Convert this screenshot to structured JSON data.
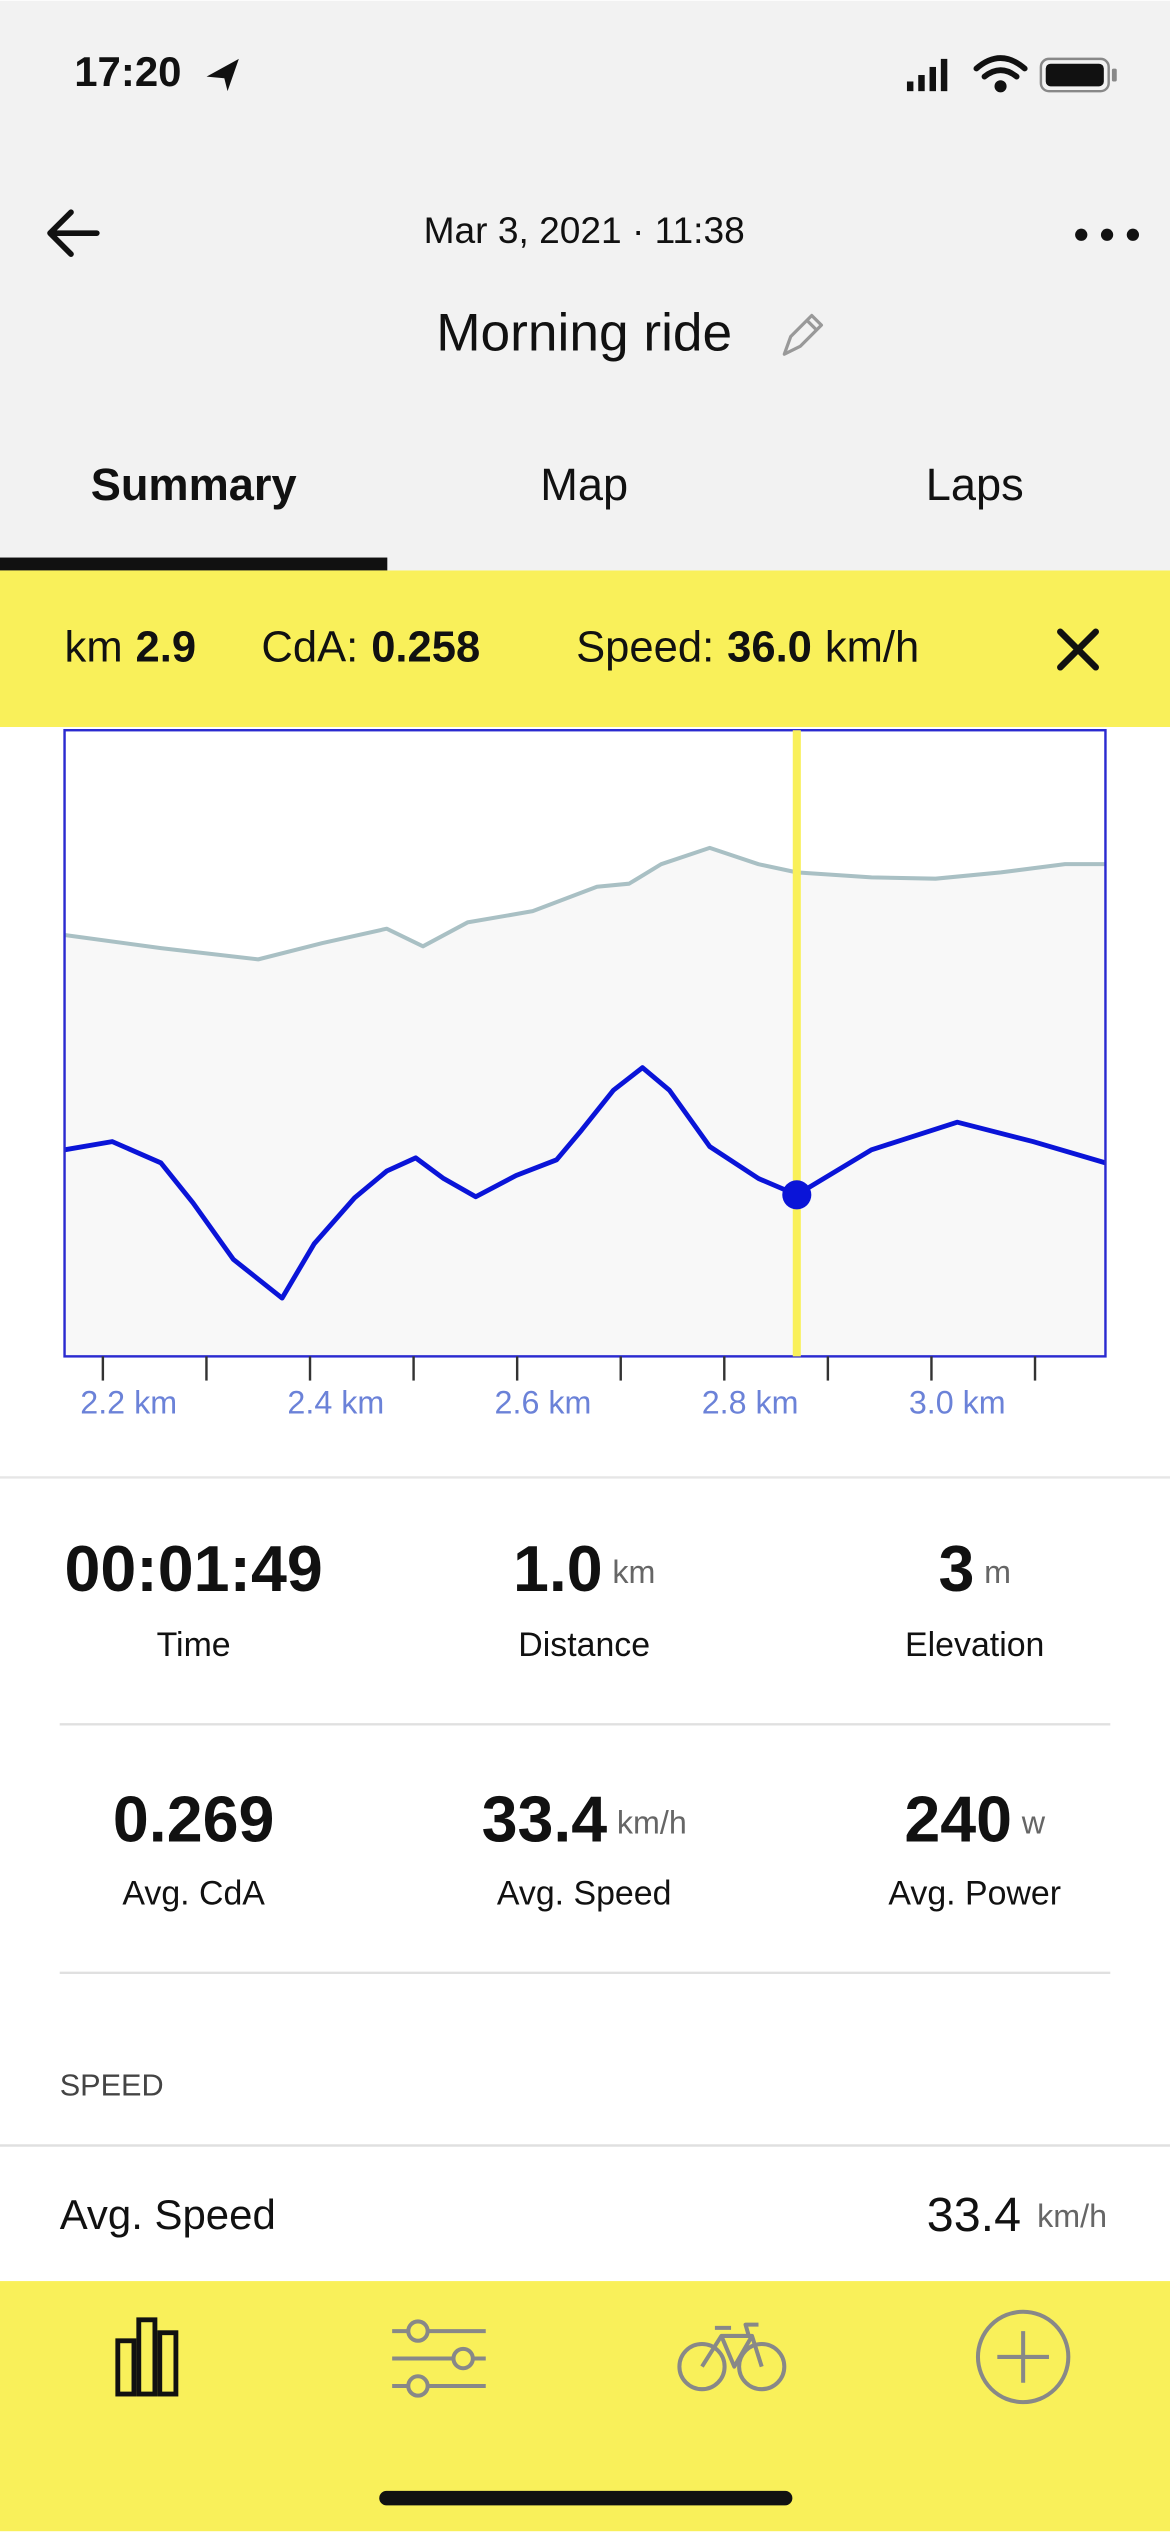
{
  "status": {
    "time": "17:20"
  },
  "header": {
    "date": "Mar 3, 2021 · 11:38",
    "title": "Morning ride"
  },
  "tabs": [
    "Summary",
    "Map",
    "Laps"
  ],
  "selection": {
    "km_label": "km",
    "km": "2.9",
    "cda_label": "CdA:",
    "cda": "0.258",
    "speed_label": "Speed:",
    "speed": "36.0",
    "speed_unit": "km/h"
  },
  "chart_data": {
    "type": "line",
    "xlim": [
      2.163,
      3.168
    ],
    "ylim": [
      0,
      100
    ],
    "xticks": [
      {
        "value": 2.2,
        "label": "2.2 km"
      },
      {
        "value": 2.4,
        "label": "2.4 km"
      },
      {
        "value": 2.6,
        "label": "2.6 km"
      },
      {
        "value": 2.8,
        "label": "2.8 km"
      },
      {
        "value": 3.0,
        "label": "3.0 km"
      }
    ],
    "xminorticks": [
      2.3,
      2.5,
      2.7,
      2.9,
      3.1
    ],
    "series": [
      {
        "color": "#a9c0c4",
        "x": [
          2.163,
          2.256,
          2.35,
          2.412,
          2.474,
          2.509,
          2.552,
          2.615,
          2.677,
          2.708,
          2.739,
          2.786,
          2.833,
          2.87,
          2.942,
          3.004,
          3.067,
          3.129,
          3.168
        ],
        "values": [
          67.3,
          65.2,
          63.4,
          66.0,
          68.3,
          65.5,
          69.3,
          71.1,
          75.0,
          75.5,
          78.6,
          81.2,
          78.6,
          77.3,
          76.5,
          76.3,
          77.3,
          78.6,
          78.6
        ]
      },
      {
        "color": "#0a14d8",
        "x": [
          2.163,
          2.209,
          2.256,
          2.287,
          2.326,
          2.373,
          2.404,
          2.443,
          2.474,
          2.502,
          2.529,
          2.56,
          2.599,
          2.638,
          2.662,
          2.693,
          2.721,
          2.747,
          2.786,
          2.833,
          2.87,
          2.942,
          3.025,
          3.098,
          3.168
        ],
        "values": [
          33.0,
          34.3,
          30.9,
          24.5,
          15.5,
          9.3,
          18.0,
          25.3,
          29.6,
          31.7,
          28.4,
          25.5,
          28.9,
          31.4,
          36.1,
          42.5,
          46.1,
          42.5,
          33.5,
          28.4,
          25.8,
          33.0,
          37.4,
          34.3,
          30.9
        ]
      }
    ],
    "cursor": {
      "x": 2.87,
      "y": 25.8,
      "color": "#f9f05a"
    }
  },
  "stats": [
    {
      "value": "00:01:49",
      "unit": null,
      "label": "Time"
    },
    {
      "value": "1.0",
      "unit": "km",
      "label": "Distance"
    },
    {
      "value": "3",
      "unit": "m",
      "label": "Elevation"
    },
    {
      "value": "0.269",
      "unit": null,
      "label": "Avg. CdA"
    },
    {
      "value": "33.4",
      "unit": "km/h",
      "label": "Avg. Speed"
    },
    {
      "value": "240",
      "unit": "w",
      "label": "Avg. Power"
    }
  ],
  "section": {
    "title": "SPEED",
    "row_label": "Avg. Speed",
    "row_value": "33.4",
    "row_unit": "km/h"
  }
}
